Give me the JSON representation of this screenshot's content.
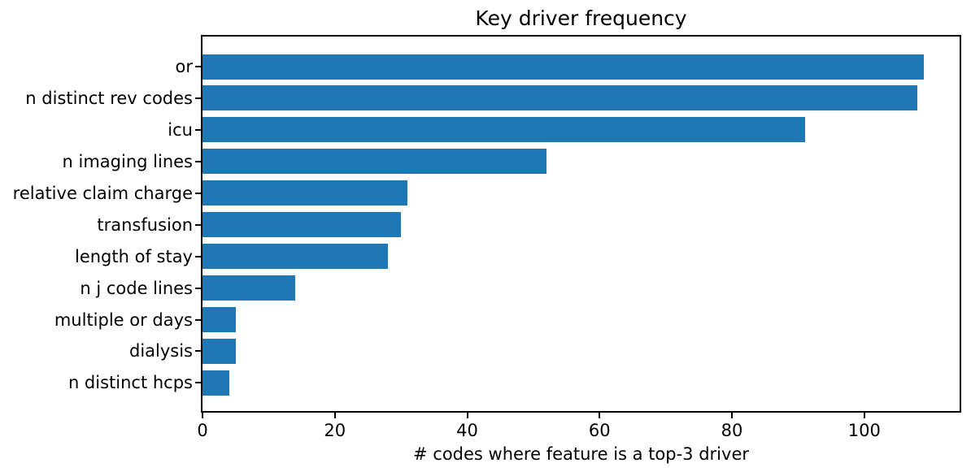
{
  "chart_data": {
    "type": "bar",
    "orientation": "horizontal",
    "title": "Key driver frequency",
    "xlabel": "# codes where feature is a top-3 driver",
    "ylabel": "",
    "categories": [
      "or",
      "n distinct rev codes",
      "icu",
      "n imaging lines",
      "relative claim charge",
      "transfusion",
      "length of stay",
      "n j code lines",
      "multiple or days",
      "dialysis",
      "n distinct hcps"
    ],
    "values": [
      109,
      108,
      91,
      52,
      31,
      30,
      28,
      14,
      5,
      5,
      4
    ],
    "xticks": [
      0,
      20,
      40,
      60,
      80,
      100
    ],
    "xlim": [
      0,
      114.4
    ],
    "bar_color": "#1f77b4",
    "background_color": "#ffffff",
    "spine_color": "#000000",
    "grid": false,
    "legend": false
  }
}
